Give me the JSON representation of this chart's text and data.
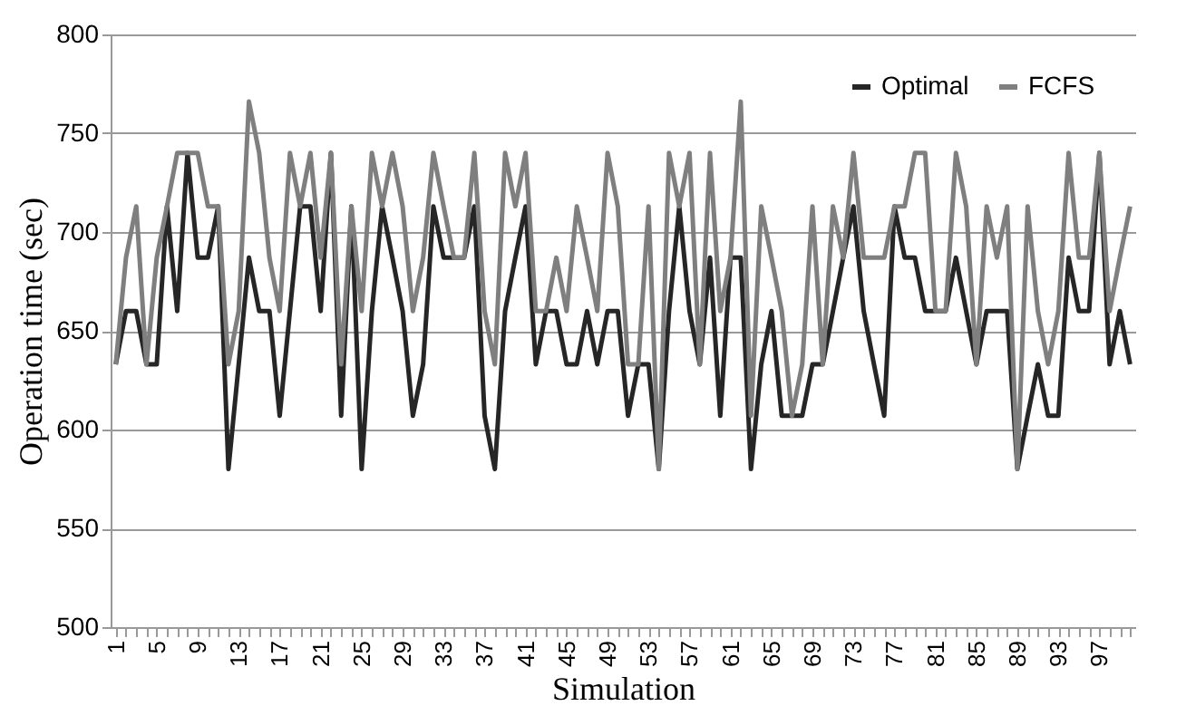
{
  "chart_data": {
    "type": "line",
    "xlabel": "Simulation",
    "ylabel": "Operation time (sec)",
    "categories": [
      "1",
      null,
      null,
      null,
      "5",
      null,
      null,
      null,
      "9",
      null,
      null,
      null,
      "13",
      null,
      null,
      null,
      "17",
      null,
      null,
      null,
      "21",
      null,
      null,
      null,
      "25",
      null,
      null,
      null,
      "29",
      null,
      null,
      null,
      "33",
      null,
      null,
      null,
      "37",
      null,
      null,
      null,
      "41",
      null,
      null,
      null,
      "45",
      null,
      null,
      null,
      "49",
      null,
      null,
      null,
      "53",
      null,
      null,
      null,
      "57",
      null,
      null,
      null,
      "61",
      null,
      null,
      null,
      "65",
      null,
      null,
      null,
      "69",
      null,
      null,
      null,
      "73",
      null,
      null,
      null,
      "77",
      null,
      null,
      null,
      "81",
      null,
      null,
      null,
      "85",
      null,
      null,
      null,
      "89",
      null,
      null,
      null,
      "93",
      null,
      null,
      null,
      "97",
      null,
      null,
      null
    ],
    "series": [
      {
        "name": "Optimal",
        "color": "#262626",
        "values": [
          633,
          660,
          660,
          633,
          633,
          713,
          660,
          740,
          687,
          687,
          713,
          580,
          633,
          687,
          660,
          660,
          607,
          660,
          713,
          713,
          660,
          740,
          607,
          713,
          580,
          660,
          713,
          687,
          660,
          607,
          633,
          713,
          687,
          687,
          687,
          713,
          607,
          580,
          660,
          687,
          713,
          633,
          660,
          660,
          633,
          633,
          660,
          633,
          660,
          660,
          607,
          633,
          633,
          580,
          660,
          713,
          660,
          633,
          687,
          607,
          687,
          687,
          580,
          633,
          660,
          607,
          607,
          607,
          633,
          633,
          660,
          687,
          713,
          660,
          633,
          607,
          713,
          687,
          687,
          660,
          660,
          660,
          687,
          660,
          633,
          660,
          660,
          660,
          580,
          607,
          633,
          607,
          607,
          687,
          660,
          660,
          740,
          633,
          660,
          633
        ]
      },
      {
        "name": "FCFS",
        "color": "#7f7f7f",
        "values": [
          633,
          687,
          713,
          633,
          687,
          713,
          740,
          740,
          740,
          713,
          713,
          633,
          660,
          766,
          740,
          687,
          660,
          740,
          713,
          740,
          687,
          740,
          633,
          713,
          660,
          740,
          713,
          740,
          713,
          660,
          687,
          740,
          713,
          687,
          687,
          740,
          660,
          633,
          740,
          713,
          740,
          660,
          660,
          687,
          660,
          713,
          687,
          660,
          740,
          713,
          633,
          633,
          713,
          580,
          740,
          713,
          740,
          633,
          740,
          660,
          687,
          766,
          607,
          713,
          687,
          660,
          607,
          633,
          713,
          633,
          713,
          687,
          740,
          687,
          687,
          687,
          713,
          713,
          740,
          740,
          660,
          660,
          740,
          713,
          633,
          713,
          687,
          713,
          580,
          713,
          660,
          633,
          660,
          740,
          687,
          687,
          740,
          660,
          687,
          713
        ]
      }
    ],
    "ylim": [
      500,
      800
    ],
    "yticks": [
      500,
      550,
      600,
      650,
      700,
      750,
      800
    ],
    "grid": "y",
    "legend": "top right",
    "line_style": "solid",
    "marker": "none"
  }
}
